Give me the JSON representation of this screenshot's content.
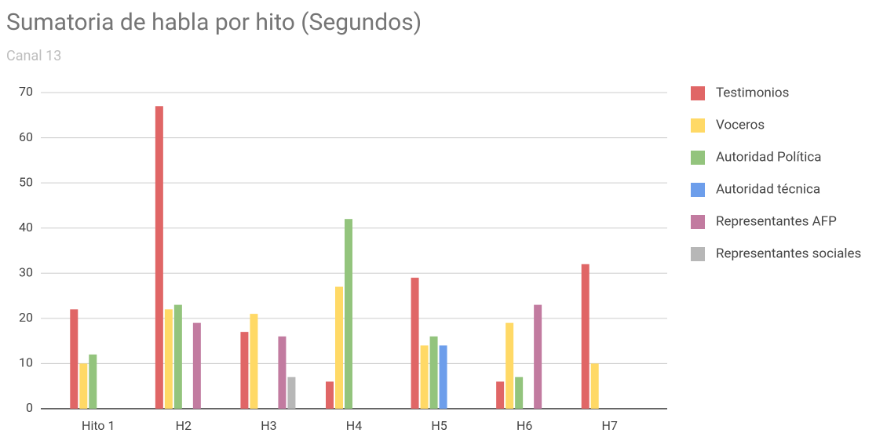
{
  "chart_data": {
    "type": "bar",
    "title": "Sumatoria de habla por hito (Segundos)",
    "subtitle": "Canal 13",
    "categories": [
      "Hito 1",
      "H2",
      "H3",
      "H4",
      "H5",
      "H6",
      "H7"
    ],
    "series": [
      {
        "name": "Testimonios",
        "color": "#e06666",
        "values": [
          22,
          67,
          17,
          6,
          29,
          6,
          32
        ]
      },
      {
        "name": "Voceros",
        "color": "#ffd966",
        "values": [
          10,
          22,
          21,
          27,
          14,
          19,
          10
        ]
      },
      {
        "name": "Autoridad Política",
        "color": "#93c47d",
        "values": [
          12,
          23,
          0,
          42,
          16,
          7,
          0
        ]
      },
      {
        "name": "Autoridad técnica",
        "color": "#6d9eeb",
        "values": [
          0,
          0,
          0,
          0,
          14,
          0,
          0
        ]
      },
      {
        "name": "Representantes AFP",
        "color": "#c27ba0",
        "values": [
          0,
          19,
          16,
          0,
          0,
          23,
          0
        ]
      },
      {
        "name": "Representantes sociales",
        "color": "#b7b7b7",
        "values": [
          0,
          0,
          7,
          0,
          0,
          0,
          0
        ]
      }
    ],
    "ylim": [
      0,
      70
    ],
    "yticks": [
      0,
      10,
      20,
      30,
      40,
      50,
      60,
      70
    ],
    "grid": true,
    "legend": "right"
  }
}
